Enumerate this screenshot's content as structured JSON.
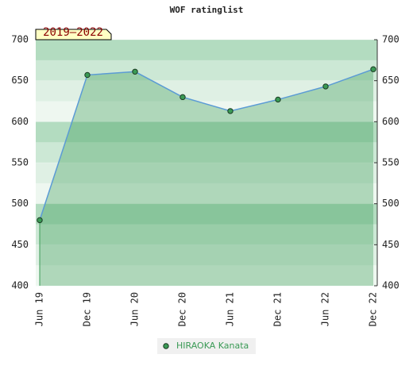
{
  "chart_data": {
    "type": "area",
    "title": "WOF ratinglist",
    "annotation": "2019–2022",
    "categories": [
      "Jun 19",
      "Dec 19",
      "Jun 20",
      "Dec 20",
      "Jun 21",
      "Dec 21",
      "Jun 22",
      "Dec 22"
    ],
    "series": [
      {
        "name": "HIRAOKA Kanata",
        "color": "#3a9a55",
        "line_color": "#5b9bd5",
        "values": [
          480,
          657,
          661,
          630,
          613,
          627,
          643,
          664
        ]
      }
    ],
    "ylim": [
      400,
      700
    ],
    "yticks": [
      400,
      450,
      500,
      550,
      600,
      650,
      700
    ],
    "grid": true
  }
}
